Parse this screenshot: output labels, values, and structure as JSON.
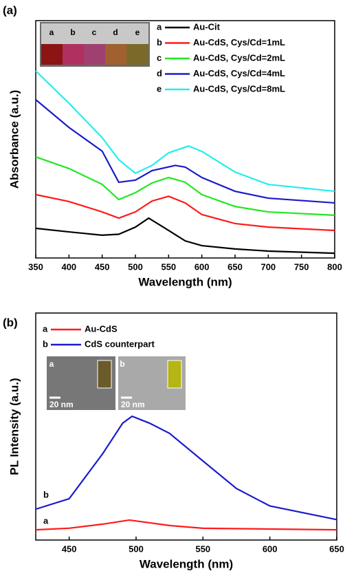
{
  "chart_data": [
    {
      "type": "line",
      "panel_label": "(a)",
      "x_label": "Wavelength (nm)",
      "y_label": "Absorbance (a.u.)",
      "xlim": [
        350,
        800
      ],
      "xticks": [
        350,
        400,
        450,
        500,
        550,
        600,
        650,
        700,
        750,
        800
      ],
      "ylim": [
        0,
        100
      ],
      "inset_labels": [
        "a",
        "b",
        "c",
        "d",
        "e"
      ],
      "series": [
        {
          "letter": "a",
          "name": "Au-Cit",
          "color": "#000000",
          "x": [
            350,
            400,
            450,
            475,
            500,
            520,
            550,
            575,
            600,
            650,
            700,
            800
          ],
          "values": [
            12.5,
            11,
            9.6,
            10,
            13,
            16.8,
            11.6,
            7.2,
            5.2,
            3.8,
            2.9,
            2
          ]
        },
        {
          "letter": "b",
          "name": "Au-CdS, Cys/Cd=1mL",
          "color": "#ff1a1a",
          "x": [
            350,
            400,
            450,
            475,
            500,
            525,
            550,
            575,
            600,
            650,
            700,
            800
          ],
          "values": [
            26.7,
            23.8,
            19.4,
            16.8,
            19.4,
            24,
            26,
            23.2,
            18.3,
            14.5,
            13,
            11.6
          ]
        },
        {
          "letter": "c",
          "name": "Au-CdS, Cys/Cd=2mL",
          "color": "#22e622",
          "x": [
            350,
            400,
            450,
            475,
            500,
            525,
            550,
            575,
            600,
            650,
            700,
            800
          ],
          "values": [
            42.6,
            37.7,
            31,
            24.6,
            27.5,
            31.6,
            33.9,
            31.9,
            26.7,
            21.7,
            19.4,
            18
          ]
        },
        {
          "letter": "d",
          "name": "Au-CdS, Cys/Cd=4mL",
          "color": "#1a1acc",
          "x": [
            350,
            400,
            450,
            475,
            500,
            525,
            560,
            575,
            600,
            650,
            700,
            800
          ],
          "values": [
            66.7,
            55,
            45,
            31.9,
            32.8,
            36.8,
            39,
            38.3,
            33.9,
            28.1,
            25.2,
            23.2
          ]
        },
        {
          "letter": "e",
          "name": "Au-CdS, Cys/Cd=8mL",
          "color": "#22eeee",
          "x": [
            350,
            400,
            450,
            475,
            500,
            525,
            550,
            580,
            600,
            650,
            700,
            800
          ],
          "values": [
            78.8,
            65.2,
            50.7,
            41.4,
            35.7,
            39,
            44.3,
            47.2,
            44.9,
            36.2,
            31,
            28.1
          ]
        }
      ]
    },
    {
      "type": "line",
      "panel_label": "(b)",
      "x_label": "Wavelength (nm)",
      "y_label": "PL Intensity (a.u.)",
      "xlim": [
        425,
        650
      ],
      "xticks": [
        450,
        500,
        550,
        600,
        650
      ],
      "ylim": [
        0,
        100
      ],
      "inset_labels": [
        "a",
        "b"
      ],
      "scale_bars": [
        "20 nm",
        "20 nm"
      ],
      "series": [
        {
          "letter": "a",
          "name": "Au-CdS",
          "color": "#ff1a1a",
          "x": [
            425,
            450,
            475,
            495,
            525,
            550,
            650
          ],
          "values": [
            4.5,
            5.2,
            7,
            8.8,
            6.4,
            5.2,
            4.5
          ]
        },
        {
          "letter": "b",
          "name": "CdS counterpart",
          "color": "#1a1acc",
          "x": [
            425,
            450,
            475,
            490,
            497,
            510,
            525,
            550,
            575,
            600,
            650
          ],
          "values": [
            13.6,
            18.2,
            38,
            51.5,
            54.5,
            51.5,
            47,
            34.8,
            22.7,
            15,
            9
          ]
        }
      ]
    }
  ]
}
